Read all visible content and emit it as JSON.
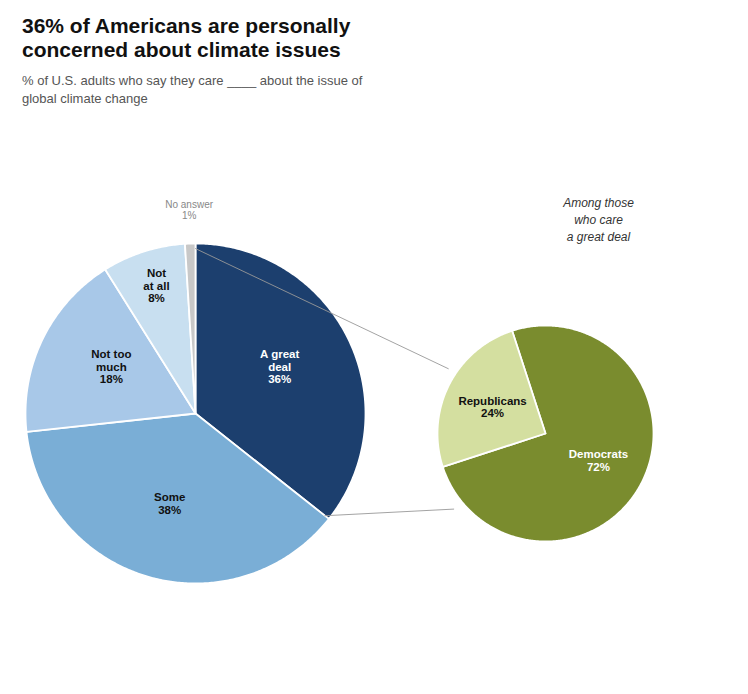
{
  "chart_data": [
    {
      "type": "pie",
      "title": "36% of Americans are personally\nconcerned about climate issues",
      "subtitle": "% of U.S. adults who say they care ____ about the issue of\nglobal climate change",
      "categories": [
        "A great\ndeal",
        "Some",
        "Not too\nmuch",
        "Not\nat all",
        "No answer"
      ],
      "values": [
        36,
        38,
        18,
        8,
        1
      ],
      "value_labels": [
        "36%",
        "38%",
        "18%",
        "8%",
        "1%"
      ],
      "colors": [
        "#1c3f6e",
        "#7aaed6",
        "#a8c8e8",
        "#c8dff0",
        "#c8c8c8"
      ],
      "data_labels": true
    },
    {
      "type": "pie",
      "annotations": [
        "Among those\nwho care\na great deal"
      ],
      "categories": [
        "Democrats",
        "Republicans"
      ],
      "values": [
        72,
        24
      ],
      "value_labels": [
        "72%",
        "24%"
      ],
      "colors": [
        "#7a8c2e",
        "#d4dfa0"
      ],
      "data_labels": true
    }
  ]
}
